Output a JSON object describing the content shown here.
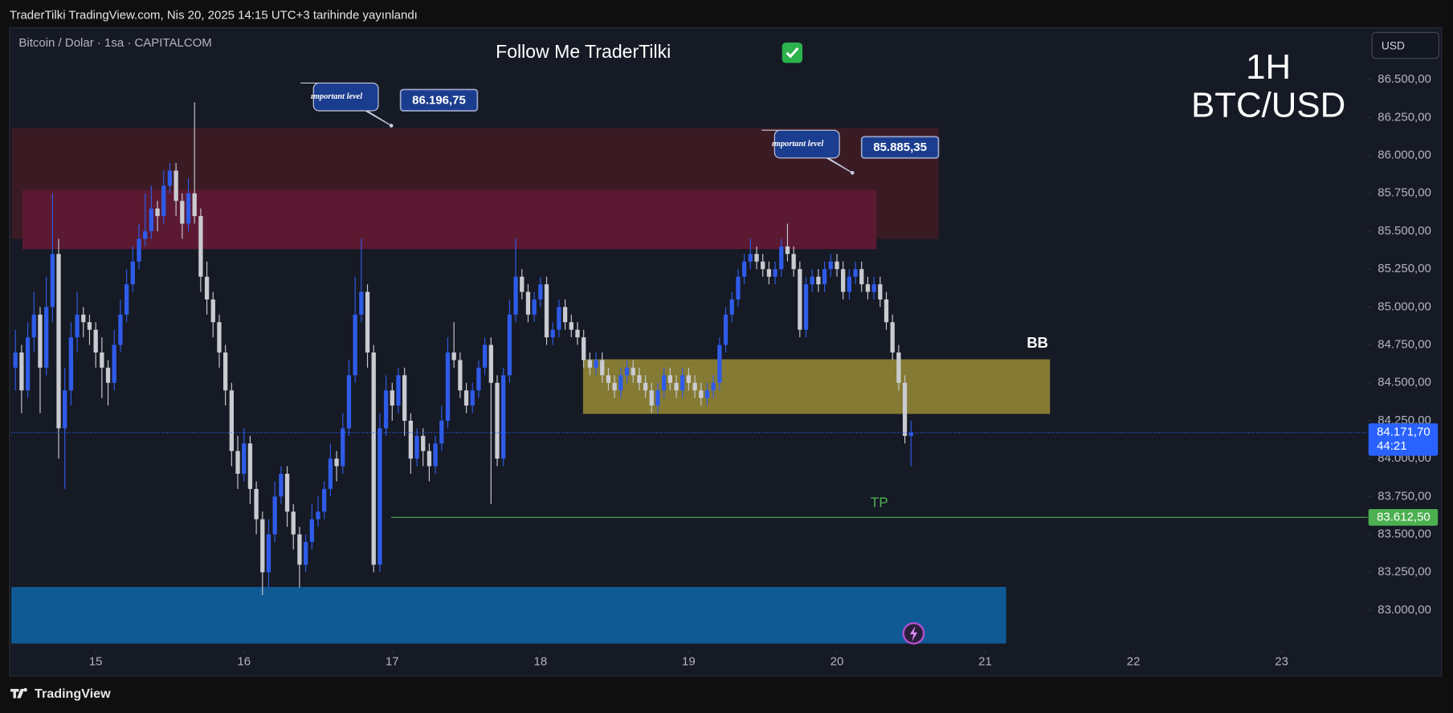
{
  "header": {
    "publisher": "TraderTilki TradingView.com, Nis 20, 2025 14:15 UTC+3 tarihinde yayınlandı",
    "brand": "TradingView"
  },
  "chart_data": {
    "type": "candlestick",
    "symbol": "Bitcoin / Dolar · 1sa · CAPITALCOM",
    "title": "Follow Me TraderTilki",
    "timeframe": "1H",
    "pair": "BTC/USD",
    "currency": "USD",
    "up_color": "#2f5be8",
    "down_color": "#c9cbd1",
    "grid": false,
    "xlim": [
      -13.65,
      205.9
    ],
    "xticks": [
      {
        "value": 0,
        "label": "15"
      },
      {
        "value": 24,
        "label": "16"
      },
      {
        "value": 48,
        "label": "17"
      },
      {
        "value": 72,
        "label": "18"
      },
      {
        "value": 96,
        "label": "19"
      },
      {
        "value": 120,
        "label": "20"
      },
      {
        "value": 144,
        "label": "21"
      },
      {
        "value": 168,
        "label": "22"
      },
      {
        "value": 192,
        "label": "23"
      }
    ],
    "ylim": [
      82731,
      86830
    ],
    "yticks": [
      {
        "value": 83000,
        "label": "83.000,00"
      },
      {
        "value": 83250,
        "label": "83.250,00"
      },
      {
        "value": 83500,
        "label": "83.500,00"
      },
      {
        "value": 83750,
        "label": "83.750,00"
      },
      {
        "value": 84000,
        "label": "84.000,00"
      },
      {
        "value": 84250,
        "label": "84.250,00"
      },
      {
        "value": 84500,
        "label": "84.500,00"
      },
      {
        "value": 84750,
        "label": "84.750,00"
      },
      {
        "value": 85000,
        "label": "85.000,00"
      },
      {
        "value": 85250,
        "label": "85.250,00"
      },
      {
        "value": 85500,
        "label": "85.500,00"
      },
      {
        "value": 85750,
        "label": "85.750,00"
      },
      {
        "value": 86000,
        "label": "86.000,00"
      },
      {
        "value": 86250,
        "label": "86.250,00"
      },
      {
        "value": 86500,
        "label": "86.500,00"
      }
    ],
    "x": [
      -13,
      -12,
      -11,
      -10,
      -9,
      -8,
      -7,
      -6,
      -5,
      -4,
      -3,
      -2,
      -1,
      0,
      1,
      2,
      3,
      4,
      5,
      6,
      7,
      8,
      9,
      10,
      11,
      12,
      13,
      14,
      15,
      16,
      17,
      18,
      19,
      20,
      21,
      22,
      23,
      24,
      25,
      26,
      27,
      28,
      29,
      30,
      31,
      32,
      33,
      34,
      35,
      36,
      37,
      38,
      39,
      40,
      41,
      42,
      43,
      44,
      45,
      46,
      47,
      48,
      49,
      50,
      51,
      52,
      53,
      54,
      55,
      56,
      57,
      58,
      59,
      60,
      61,
      62,
      63,
      64,
      65,
      66,
      67,
      68,
      69,
      70,
      71,
      72,
      73,
      74,
      75,
      76,
      77,
      78,
      79,
      80,
      81,
      82,
      83,
      84,
      85,
      86,
      87,
      88,
      89,
      90,
      91,
      92,
      93,
      94,
      95,
      96,
      97,
      98,
      99,
      100,
      101,
      102,
      103,
      104,
      105,
      106,
      107,
      108,
      109,
      110,
      111,
      112,
      113,
      114,
      115,
      116,
      117,
      118,
      119,
      120,
      121,
      122,
      123,
      124,
      125,
      126,
      127,
      128,
      129,
      130,
      131,
      132
    ],
    "ohlc": [
      [
        84600,
        84850,
        84450,
        84700
      ],
      [
        84700,
        84750,
        84300,
        84450
      ],
      [
        84450,
        84900,
        84400,
        84800
      ],
      [
        84800,
        85100,
        84700,
        84950
      ],
      [
        84950,
        85000,
        84300,
        84600
      ],
      [
        84600,
        85200,
        84550,
        85000
      ],
      [
        85000,
        85750,
        84900,
        85350
      ],
      [
        85350,
        85450,
        84000,
        84200
      ],
      [
        84200,
        84600,
        83800,
        84450
      ],
      [
        84450,
        84900,
        84350,
        84800
      ],
      [
        84800,
        85100,
        84700,
        84950
      ],
      [
        84950,
        85000,
        84800,
        84900
      ],
      [
        84900,
        84950,
        84750,
        84850
      ],
      [
        84850,
        84900,
        84600,
        84700
      ],
      [
        84700,
        84800,
        84400,
        84600
      ],
      [
        84600,
        84650,
        84350,
        84500
      ],
      [
        84500,
        84850,
        84450,
        84750
      ],
      [
        84750,
        85050,
        84700,
        84950
      ],
      [
        84950,
        85250,
        84900,
        85150
      ],
      [
        85150,
        85400,
        85100,
        85300
      ],
      [
        85300,
        85550,
        85250,
        85450
      ],
      [
        85450,
        85750,
        85400,
        85500
      ],
      [
        85500,
        85800,
        85450,
        85650
      ],
      [
        85650,
        85700,
        85500,
        85600
      ],
      [
        85600,
        85900,
        85550,
        85800
      ],
      [
        85800,
        85950,
        85750,
        85900
      ],
      [
        85900,
        85950,
        85600,
        85700
      ],
      [
        85700,
        85750,
        85450,
        85550
      ],
      [
        85550,
        85850,
        85500,
        85750
      ],
      [
        85750,
        86350,
        85550,
        85600
      ],
      [
        85600,
        85650,
        85100,
        85200
      ],
      [
        85200,
        85300,
        84950,
        85050
      ],
      [
        85050,
        85100,
        84800,
        84900
      ],
      [
        84900,
        84950,
        84600,
        84700
      ],
      [
        84700,
        84750,
        84350,
        84450
      ],
      [
        84450,
        84500,
        83950,
        84050
      ],
      [
        84050,
        84150,
        83800,
        83900
      ],
      [
        83900,
        84200,
        83850,
        84100
      ],
      [
        84100,
        84150,
        83700,
        83800
      ],
      [
        83800,
        83850,
        83500,
        83600
      ],
      [
        83600,
        83650,
        83100,
        83250
      ],
      [
        83250,
        83600,
        83150,
        83500
      ],
      [
        83500,
        83850,
        83450,
        83750
      ],
      [
        83750,
        83950,
        83700,
        83900
      ],
      [
        83900,
        83950,
        83550,
        83650
      ],
      [
        83650,
        83700,
        83400,
        83500
      ],
      [
        83500,
        83550,
        83150,
        83300
      ],
      [
        83300,
        83500,
        83250,
        83450
      ],
      [
        83450,
        83700,
        83400,
        83600
      ],
      [
        83600,
        83750,
        83550,
        83650
      ],
      [
        83650,
        83850,
        83600,
        83800
      ],
      [
        83800,
        84100,
        83750,
        84000
      ],
      [
        84000,
        84050,
        83850,
        83950
      ],
      [
        83950,
        84300,
        83900,
        84200
      ],
      [
        84200,
        84650,
        84150,
        84550
      ],
      [
        84550,
        85200,
        84500,
        84950
      ],
      [
        84950,
        85450,
        84900,
        85100
      ],
      [
        85100,
        85150,
        84600,
        84700
      ],
      [
        84700,
        84750,
        83250,
        83300
      ],
      [
        83300,
        84300,
        83250,
        84200
      ],
      [
        84200,
        84550,
        84150,
        84450
      ],
      [
        84450,
        84500,
        84250,
        84350
      ],
      [
        84350,
        84600,
        84300,
        84550
      ],
      [
        84550,
        84600,
        84150,
        84250
      ],
      [
        84250,
        84300,
        83900,
        84000
      ],
      [
        84000,
        84200,
        83950,
        84150
      ],
      [
        84150,
        84200,
        83950,
        84050
      ],
      [
        84050,
        84100,
        83850,
        83950
      ],
      [
        83950,
        84150,
        83900,
        84100
      ],
      [
        84100,
        84350,
        84050,
        84250
      ],
      [
        84250,
        84800,
        84200,
        84700
      ],
      [
        84700,
        84900,
        84600,
        84650
      ],
      [
        84650,
        84700,
        84400,
        84450
      ],
      [
        84450,
        84500,
        84300,
        84350
      ],
      [
        84350,
        84500,
        84300,
        84450
      ],
      [
        84450,
        84650,
        84400,
        84600
      ],
      [
        84600,
        84800,
        84550,
        84750
      ],
      [
        84750,
        84800,
        83700,
        84500
      ],
      [
        84500,
        84550,
        83950,
        84000
      ],
      [
        84000,
        84600,
        83950,
        84550
      ],
      [
        84550,
        85050,
        84500,
        84950
      ],
      [
        84950,
        85450,
        84900,
        85200
      ],
      [
        85200,
        85250,
        85050,
        85100
      ],
      [
        85100,
        85150,
        84900,
        84950
      ],
      [
        84950,
        85100,
        84900,
        85050
      ],
      [
        85050,
        85200,
        85000,
        85150
      ],
      [
        85150,
        85200,
        84750,
        84800
      ],
      [
        84800,
        84900,
        84750,
        84850
      ],
      [
        84850,
        85050,
        84800,
        85000
      ],
      [
        85000,
        85050,
        84850,
        84900
      ],
      [
        84900,
        84950,
        84800,
        84850
      ],
      [
        84850,
        84900,
        84750,
        84800
      ],
      [
        84800,
        84850,
        84600,
        84650
      ],
      [
        84650,
        84700,
        84550,
        84600
      ],
      [
        84600,
        84700,
        84550,
        84650
      ],
      [
        84650,
        84700,
        84500,
        84550
      ],
      [
        84550,
        84600,
        84450,
        84500
      ],
      [
        84500,
        84550,
        84400,
        84450
      ],
      [
        84450,
        84600,
        84400,
        84550
      ],
      [
        84550,
        84650,
        84500,
        84600
      ],
      [
        84600,
        84650,
        84500,
        84550
      ],
      [
        84550,
        84600,
        84450,
        84500
      ],
      [
        84500,
        84550,
        84400,
        84450
      ],
      [
        84450,
        84500,
        84300,
        84350
      ],
      [
        84350,
        84500,
        84300,
        84450
      ],
      [
        84450,
        84600,
        84400,
        84550
      ],
      [
        84550,
        84600,
        84450,
        84500
      ],
      [
        84500,
        84550,
        84400,
        84450
      ],
      [
        84450,
        84600,
        84400,
        84550
      ],
      [
        84550,
        84600,
        84450,
        84500
      ],
      [
        84500,
        84550,
        84400,
        84450
      ],
      [
        84450,
        84500,
        84350,
        84400
      ],
      [
        84400,
        84500,
        84350,
        84450
      ],
      [
        84450,
        84550,
        84400,
        84500
      ],
      [
        84500,
        84800,
        84450,
        84750
      ],
      [
        84750,
        85000,
        84700,
        84950
      ],
      [
        84950,
        85100,
        84900,
        85050
      ],
      [
        85050,
        85250,
        85000,
        85200
      ],
      [
        85200,
        85350,
        85150,
        85300
      ],
      [
        85300,
        85450,
        85250,
        85350
      ],
      [
        85350,
        85400,
        85250,
        85300
      ],
      [
        85300,
        85350,
        85200,
        85250
      ],
      [
        85250,
        85300,
        85150,
        85200
      ],
      [
        85200,
        85300,
        85150,
        85250
      ],
      [
        85250,
        85450,
        85200,
        85400
      ],
      [
        85400,
        85550,
        85300,
        85350
      ],
      [
        85350,
        85400,
        85200,
        85250
      ],
      [
        85250,
        85300,
        84800,
        84850
      ],
      [
        84850,
        85200,
        84800,
        85150
      ],
      [
        85150,
        85250,
        85100,
        85200
      ],
      [
        85200,
        85250,
        85100,
        85150
      ],
      [
        85150,
        85300,
        85100,
        85250
      ],
      [
        85250,
        85350,
        85200,
        85300
      ],
      [
        85300,
        85350,
        85200,
        85250
      ],
      [
        85250,
        85300,
        85050,
        85100
      ],
      [
        85100,
        85250,
        85050,
        85200
      ],
      [
        85200,
        85300,
        85150,
        85250
      ],
      [
        85250,
        85300,
        85100,
        85150
      ],
      [
        85150,
        85200,
        85050,
        85100
      ],
      [
        85100,
        85200,
        85050,
        85150
      ],
      [
        85150,
        85200,
        85000,
        85050
      ],
      [
        85050,
        85100,
        84850,
        84900
      ],
      [
        84900,
        84950,
        84650,
        84700
      ],
      [
        84700,
        84750,
        84450,
        84500
      ],
      [
        84500,
        84550,
        84100,
        84150
      ],
      [
        84150,
        84250,
        83950,
        84171.7
      ]
    ],
    "zones": [
      {
        "start": -13.65,
        "end": 136.5,
        "low": 85449,
        "high": 86182,
        "color": "#3a1b24"
      },
      {
        "start": -11.85,
        "end": 126.4,
        "low": 85382,
        "high": 85773,
        "color": "#5b1a32"
      },
      {
        "start": 78.9,
        "end": 154.5,
        "low": 84295,
        "high": 84655,
        "color": "#857a33",
        "label": "BB"
      },
      {
        "start": -13.65,
        "end": 147.4,
        "low": 82780,
        "high": 83153,
        "color": "#0f5a95"
      }
    ],
    "callouts": [
      {
        "text": "ımportant level",
        "x": 47.85,
        "price": 86196.75,
        "price_label": "86.196,75"
      },
      {
        "text": "ımportant level",
        "x": 122.5,
        "price": 85885.35,
        "price_label": "85.885,35"
      }
    ],
    "target": {
      "label": "TP",
      "start": 47.85,
      "price": 83612.5,
      "price_label": "83.612,50",
      "color": "#4caf50"
    },
    "last_price": {
      "price": 84171.7,
      "price_label": "84.171,70",
      "countdown": "44:21",
      "color": "#2962ff"
    }
  }
}
